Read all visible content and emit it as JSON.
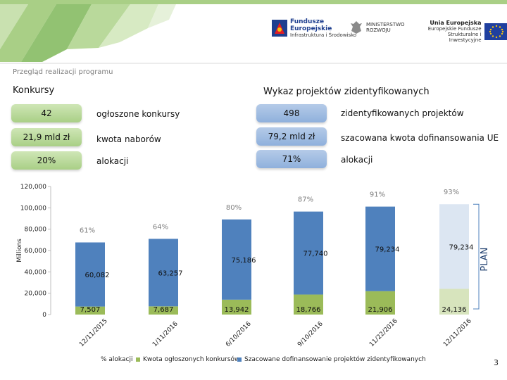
{
  "header": {
    "logo_fe_line1": "Fundusze",
    "logo_fe_line2": "Europejskie",
    "logo_fe_line3": "Infrastruktura i Środowisko",
    "ministry_line1": "MINISTERSTWO",
    "ministry_line2": "ROZWOJU",
    "eu_line1": "Unia Europejska",
    "eu_line2": "Europejskie Fundusze",
    "eu_line3": "Strukturalne i Inwestycyjne"
  },
  "subtitle": "Przegląd realizacji programu",
  "left_section": {
    "title": "Konkursy",
    "rows": [
      {
        "value": "42",
        "label": "ogłoszone konkursy"
      },
      {
        "value": "21,9 mld zł",
        "label": "kwota naborów"
      },
      {
        "value": "20%",
        "label": "alokacji"
      }
    ]
  },
  "right_section": {
    "title": "Wykaz projektów zidentyfikowanych",
    "rows": [
      {
        "value": "498",
        "label": "zidentyfikowanych projektów"
      },
      {
        "value": "79,2 mld zł",
        "label": "szacowana kwota dofinansowania UE"
      },
      {
        "value": "71%",
        "label": "alokacji"
      }
    ]
  },
  "chart_data": {
    "type": "bar",
    "ylabel": "Millions",
    "ylim": [
      0,
      120000
    ],
    "yticks": [
      "0",
      "20,000",
      "40,000",
      "60,000",
      "80,000",
      "100,000",
      "120,000"
    ],
    "categories": [
      "12/11/2015",
      "1/11/2016",
      "6/10/2016",
      "9/10/2016",
      "11/22/2016",
      "12/11/2016"
    ],
    "series": [
      {
        "name": "Kwota ogłoszonych konkursów",
        "values": [
          7507,
          7687,
          13942,
          18766,
          21906,
          24136
        ],
        "labels": [
          "7,507",
          "7,687",
          "13,942",
          "18,766",
          "21,906",
          "24,136"
        ]
      },
      {
        "name": "Szacowane dofinansowanie projektów zidentyfikowanych",
        "values": [
          60082,
          63257,
          75186,
          77740,
          79234,
          79234
        ],
        "labels": [
          "60,082",
          "63,257",
          "75,186",
          "77,740",
          "79,234",
          "79,234"
        ]
      }
    ],
    "alokacji_series_name": "% alokacji",
    "alokacji_labels": [
      "61%",
      "64%",
      "80%",
      "87%",
      "91%",
      "93%"
    ],
    "alokacji_values": [
      61,
      64,
      80,
      87,
      91,
      93
    ],
    "plan_label": "PLAN",
    "colors": {
      "green": "#9bbb59",
      "green_light": "#d7e4bd",
      "blue": "#4f81bd",
      "blue_light": "#dce6f2",
      "pct_text": "#7f7f7f"
    },
    "legend_position": "bottom"
  },
  "page_number": "3"
}
